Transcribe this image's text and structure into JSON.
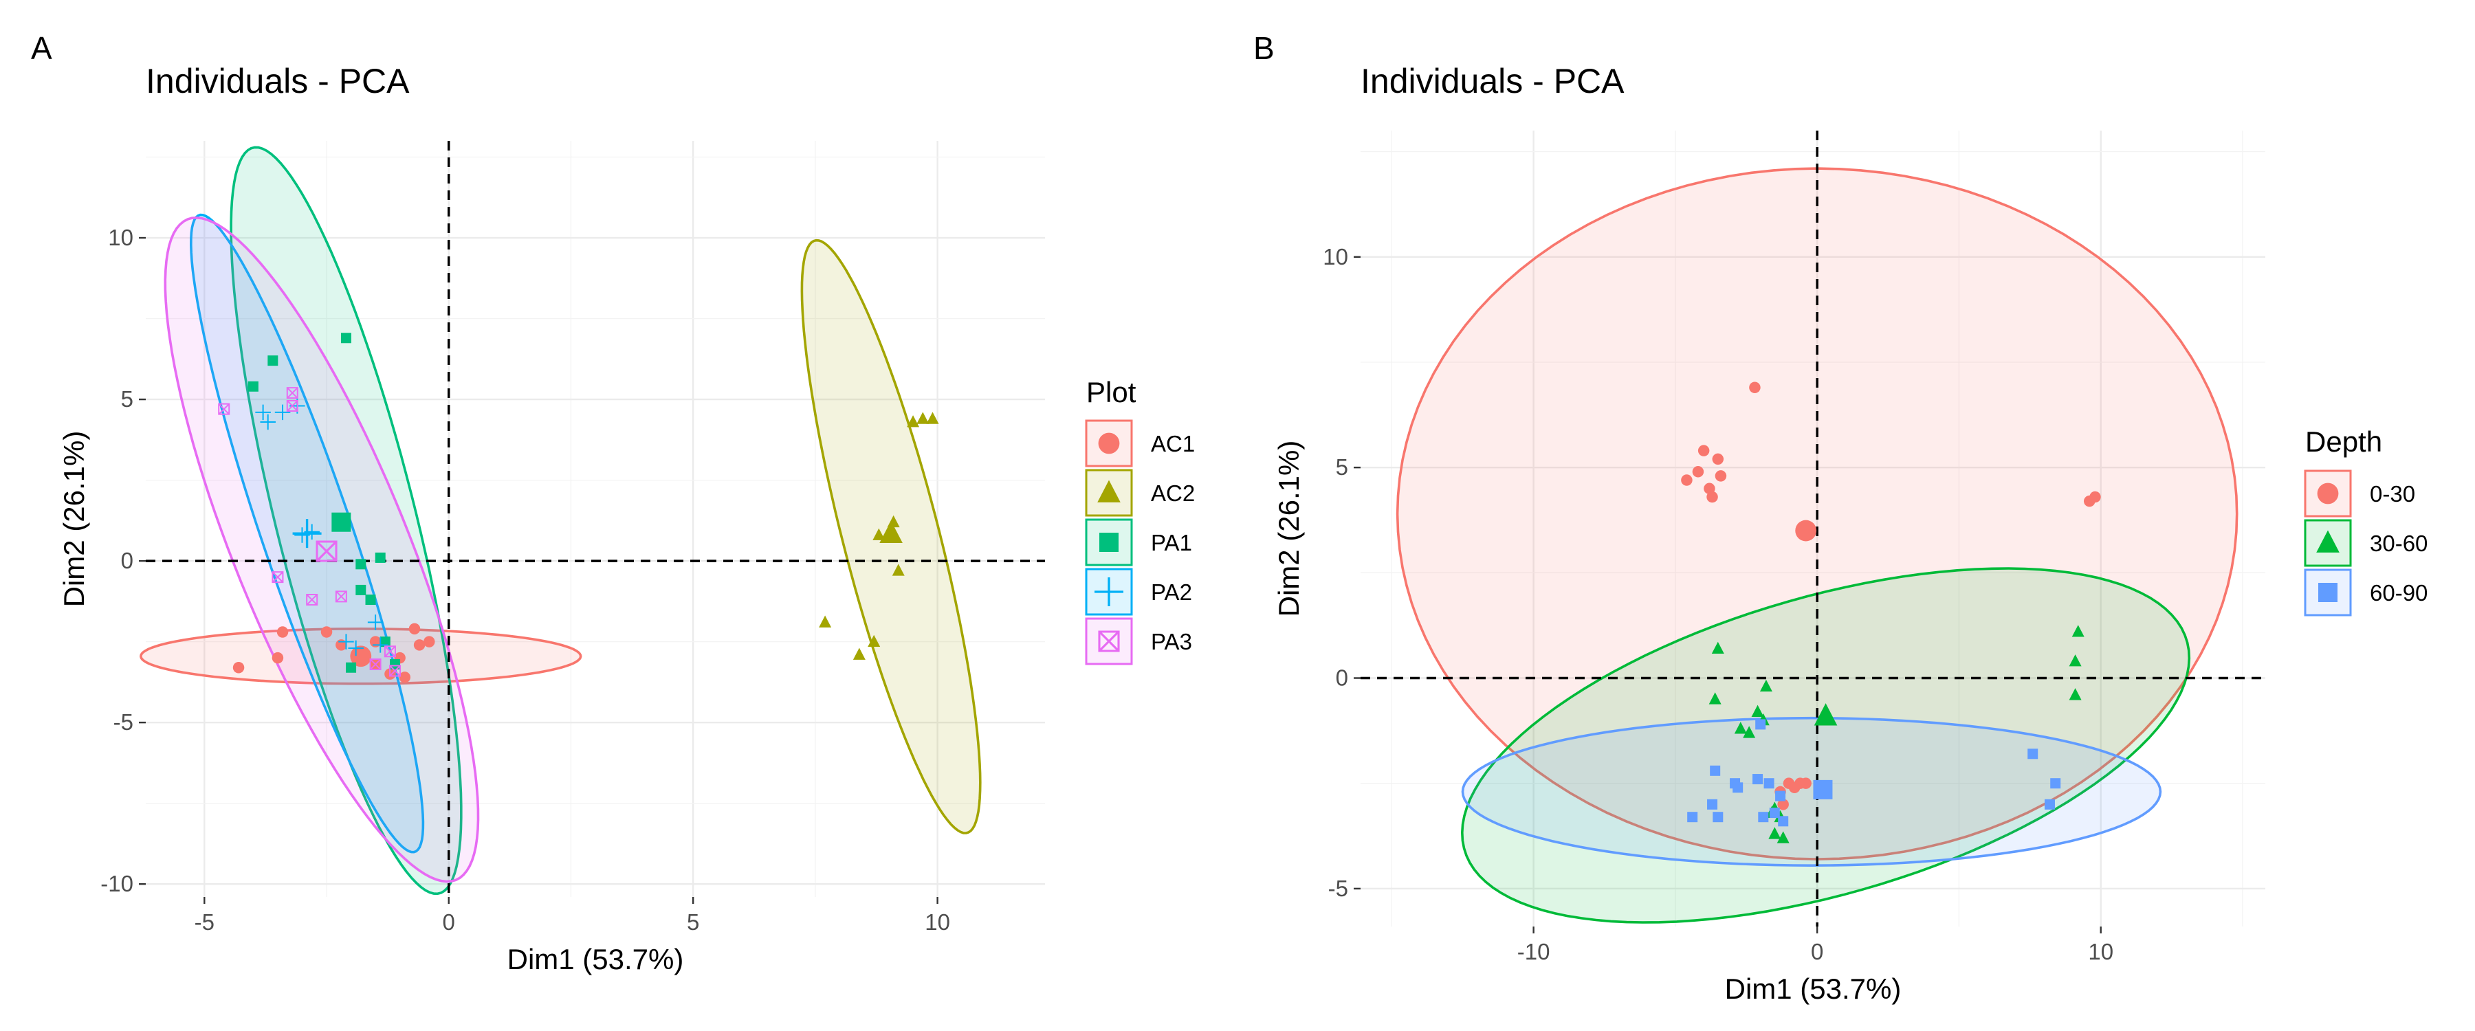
{
  "chart_data": [
    {
      "panel_label": "A",
      "type": "scatter",
      "title": "Individuals - PCA",
      "xlabel": "Dim1 (53.7%)",
      "ylabel": "Dim2 (26.1%)",
      "xlim": [
        -6.2,
        12.2
      ],
      "ylim": [
        -10.4,
        13
      ],
      "xticks": [
        -5,
        0,
        5,
        10
      ],
      "yticks": [
        -10,
        -5,
        0,
        5,
        10
      ],
      "xtick_labels": [
        "-5",
        "0",
        "5",
        "10"
      ],
      "ytick_labels": [
        "-10",
        "-5",
        "0",
        "5",
        "10"
      ],
      "grid": true,
      "reference_lines": {
        "x": 0,
        "y": 0
      },
      "legend_title": "Plot",
      "legend_position": "right",
      "series": [
        {
          "name": "AC1",
          "shape": "circle",
          "color": "#F8766D",
          "points": [
            [
              -4.3,
              -3.3
            ],
            [
              -3.5,
              -3
            ],
            [
              -3.4,
              -2.2
            ],
            [
              -2.5,
              -2.2
            ],
            [
              -2.2,
              -2.6
            ],
            [
              -1.5,
              -2.5
            ],
            [
              -1.5,
              -3.2
            ],
            [
              -1.2,
              -3.5
            ],
            [
              -1,
              -3
            ],
            [
              -0.9,
              -3.6
            ],
            [
              -0.7,
              -2.1
            ],
            [
              -0.6,
              -2.6
            ],
            [
              -0.4,
              -2.5
            ]
          ],
          "centroid": [
            -1.8,
            -2.95
          ],
          "ellipse": {
            "center": [
              -1.8,
              -2.95
            ],
            "rx": 4.5,
            "ry": 0.85,
            "angle_deg": 0
          }
        },
        {
          "name": "AC2",
          "shape": "triangle",
          "color": "#A3A500",
          "points": [
            [
              7.7,
              -1.9
            ],
            [
              8.4,
              -2.9
            ],
            [
              8.7,
              -2.5
            ],
            [
              8.8,
              0.8
            ],
            [
              9.1,
              1.2
            ],
            [
              9.2,
              -0.3
            ],
            [
              9.5,
              4.3
            ],
            [
              9.7,
              4.4
            ],
            [
              9.9,
              4.4
            ]
          ],
          "centroid": [
            9.05,
            0.85
          ],
          "ellipse": {
            "center": [
              9.05,
              0.75
            ],
            "rx": 9.3,
            "ry": 1.0,
            "angle_deg": -80.5
          }
        },
        {
          "name": "PA1",
          "shape": "square",
          "color": "#00BF7D",
          "points": [
            [
              -4.0,
              5.4
            ],
            [
              -3.6,
              6.2
            ],
            [
              -2.1,
              6.9
            ],
            [
              -2.0,
              -3.3
            ],
            [
              -1.8,
              -0.1
            ],
            [
              -1.8,
              -0.9
            ],
            [
              -1.6,
              -1.2
            ],
            [
              -1.3,
              -2.5
            ],
            [
              -1.1,
              -3.2
            ],
            [
              -1.4,
              0.1
            ]
          ],
          "centroid": [
            -2.2,
            1.2
          ],
          "ellipse": {
            "center": [
              -2.1,
              1.25
            ],
            "rx": 11.7,
            "ry": 1.45,
            "angle_deg": -80.8
          }
        },
        {
          "name": "PA2",
          "shape": "plus",
          "color": "#00B0F6",
          "points": [
            [
              -3.8,
              4.6
            ],
            [
              -3.7,
              4.3
            ],
            [
              -3.1,
              4.8
            ],
            [
              -3.0,
              0.8
            ],
            [
              -2.8,
              0.9
            ],
            [
              -2.1,
              -2.5
            ],
            [
              -1.9,
              -2.7
            ],
            [
              -1.5,
              -1.9
            ],
            [
              -1.4,
              -2.6
            ],
            [
              -3.4,
              4.6
            ]
          ],
          "centroid": [
            -2.9,
            0.85
          ],
          "ellipse": {
            "center": [
              -2.9,
              0.85
            ],
            "rx": 10.1,
            "ry": 0.95,
            "angle_deg": -77.5
          }
        },
        {
          "name": "PA3",
          "shape": "square-x",
          "color": "#E76BF3",
          "points": [
            [
              -4.6,
              4.7
            ],
            [
              -3.5,
              -0.5
            ],
            [
              -3.2,
              5.2
            ],
            [
              -3.2,
              4.8
            ],
            [
              -2.8,
              -1.2
            ],
            [
              -2.2,
              -1.1
            ],
            [
              -1.5,
              -3.2
            ],
            [
              -1.2,
              -2.8
            ],
            [
              -1.1,
              -3.4
            ]
          ],
          "centroid": [
            -2.5,
            0.3
          ],
          "ellipse": {
            "center": [
              -2.6,
              0.35
            ],
            "rx": 10.6,
            "ry": 1.85,
            "angle_deg": -75.5
          }
        }
      ]
    },
    {
      "panel_label": "B",
      "type": "scatter",
      "title": "Individuals - PCA",
      "xlabel": "Dim1 (53.7%)",
      "ylabel": "Dim2 (26.1%)",
      "xlim": [
        -16.1,
        15.8
      ],
      "ylim": [
        -5.9,
        13
      ],
      "xticks": [
        -10,
        0,
        10
      ],
      "yticks": [
        -5,
        0,
        5,
        10
      ],
      "xtick_labels": [
        "-10",
        "0",
        "10"
      ],
      "ytick_labels": [
        "-5",
        "0",
        "5",
        "10"
      ],
      "grid": true,
      "reference_lines": {
        "x": 0,
        "y": 0
      },
      "legend_title": "Depth",
      "legend_position": "right",
      "series": [
        {
          "name": "0-30",
          "shape": "circle",
          "color": "#F8766D",
          "points": [
            [
              -4.6,
              4.7
            ],
            [
              -4.2,
              4.9
            ],
            [
              -4.0,
              5.4
            ],
            [
              -3.8,
              4.5
            ],
            [
              -3.7,
              4.3
            ],
            [
              -3.5,
              5.2
            ],
            [
              -3.4,
              4.8
            ],
            [
              -2.2,
              6.9
            ],
            [
              9.6,
              4.2
            ],
            [
              9.8,
              4.3
            ],
            [
              -1.3,
              -2.7
            ],
            [
              -1.0,
              -2.5
            ],
            [
              -0.8,
              -2.6
            ],
            [
              -0.6,
              -2.5
            ],
            [
              -1.2,
              -3.0
            ],
            [
              -0.4,
              -2.5
            ]
          ],
          "centroid": [
            -0.4,
            3.5
          ],
          "ellipse": {
            "center": [
              0,
              3.9
            ],
            "rx": 14.8,
            "ry": 8.2,
            "angle_deg": 0
          }
        },
        {
          "name": "30-60",
          "shape": "triangle",
          "color": "#00BA38",
          "points": [
            [
              -3.5,
              0.7
            ],
            [
              -3.6,
              -0.5
            ],
            [
              -2.7,
              -1.2
            ],
            [
              -2.4,
              -1.3
            ],
            [
              -2.1,
              -0.8
            ],
            [
              -1.8,
              -0.2
            ],
            [
              -1.9,
              -1.0
            ],
            [
              -1.5,
              -3.7
            ],
            [
              -1.2,
              -3.8
            ],
            [
              -1.5,
              -3.1
            ],
            [
              -1.3,
              -3.3
            ],
            [
              9.2,
              1.1
            ],
            [
              9.1,
              0.4
            ],
            [
              9.1,
              -0.4
            ],
            [
              -1.6,
              -3.2
            ]
          ],
          "centroid": [
            0.3,
            -0.9
          ],
          "ellipse": {
            "center": [
              0.3,
              -1.6
            ],
            "rx": 13.0,
            "ry": 3.6,
            "angle_deg": 10.0
          }
        },
        {
          "name": "60-90",
          "shape": "square",
          "color": "#619CFF",
          "points": [
            [
              -4.4,
              -3.3
            ],
            [
              -3.7,
              -3.0
            ],
            [
              -3.6,
              -2.2
            ],
            [
              -3.5,
              -3.3
            ],
            [
              -2.9,
              -2.5
            ],
            [
              -2.8,
              -2.6
            ],
            [
              -2.0,
              -1.1
            ],
            [
              -1.7,
              -2.5
            ],
            [
              -1.5,
              -3.2
            ],
            [
              -1.3,
              -2.8
            ],
            [
              -1.2,
              -3.4
            ],
            [
              7.6,
              -1.8
            ],
            [
              8.4,
              -2.5
            ],
            [
              8.2,
              -3.0
            ],
            [
              -2.1,
              -2.4
            ],
            [
              -1.9,
              -3.3
            ]
          ],
          "centroid": [
            0.2,
            -2.65
          ],
          "ellipse": {
            "center": [
              -0.2,
              -2.7
            ],
            "rx": 12.3,
            "ry": 1.75,
            "angle_deg": 0
          }
        }
      ]
    }
  ]
}
